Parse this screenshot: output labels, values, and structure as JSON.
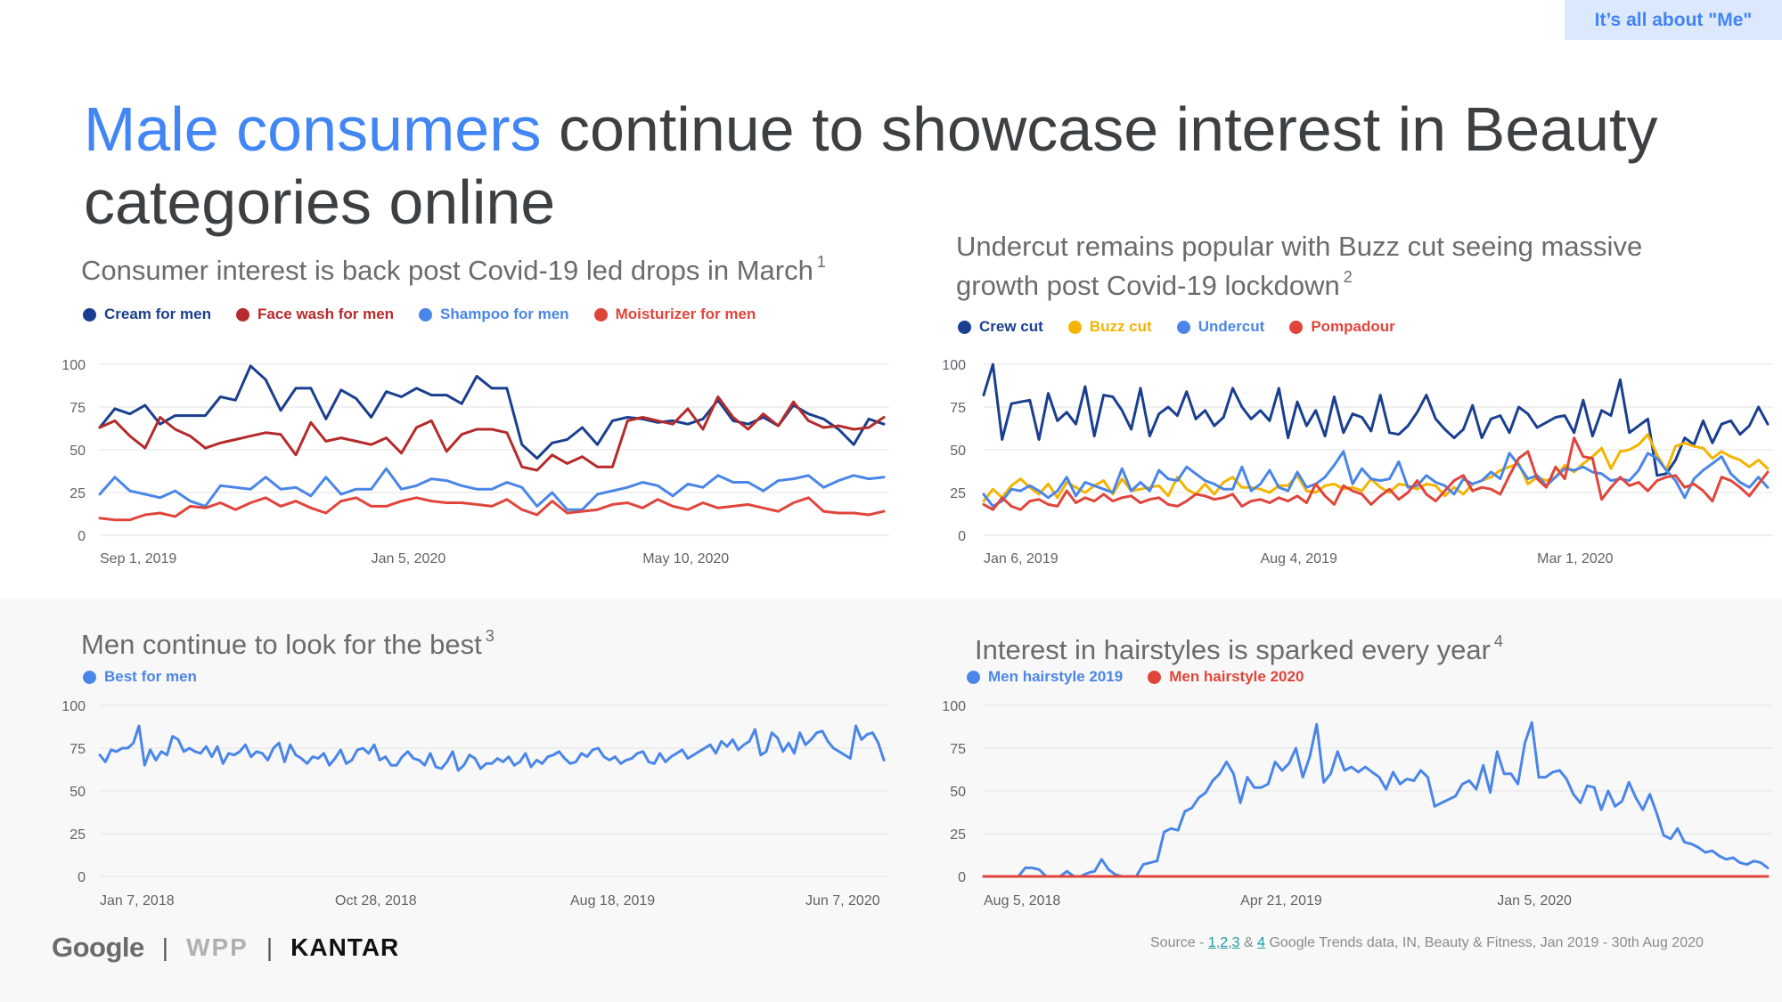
{
  "header": {
    "tag": "It’s all about \"Me\"",
    "headline_highlight": "Male consumers",
    "headline_rest": " continue to showcase interest in Beauty categories online"
  },
  "footer": {
    "logo_google": "Google",
    "sep1": "|",
    "logo_wpp": "WPP",
    "sep2": "|",
    "logo_kantar": "KANTAR",
    "source_prefix": "Source - ",
    "link1": "1",
    "comma1": ",",
    "link2": "2",
    "comma2": ",",
    "link3": "3",
    "amp": " & ",
    "link4": "4",
    "source_suffix": " Google Trends data, IN, Beauty & Fitness, Jan 2019 - 30th Aug 2020"
  },
  "chart_data": [
    {
      "type": "line",
      "title": "Consumer interest is back post Covid-19 led drops in March",
      "footnote": "1",
      "ylim": [
        0,
        100
      ],
      "y_ticks": [
        0,
        25,
        50,
        75,
        100
      ],
      "x_tick_labels": [
        "Sep 1, 2019",
        "Jan 5, 2020",
        "May 10, 2020"
      ],
      "x_tick_positions": [
        0,
        18,
        36
      ],
      "n_points": 53,
      "grid": true,
      "legend": "top-left",
      "series": [
        {
          "name": "Cream for men",
          "color": "#1a3f8f",
          "values": [
            63,
            74,
            71,
            76,
            65,
            70,
            70,
            70,
            81,
            79,
            99,
            91,
            73,
            86,
            86,
            68,
            85,
            80,
            69,
            84,
            81,
            86,
            82,
            82,
            77,
            93,
            86,
            86,
            53,
            45,
            54,
            56,
            63,
            53,
            67,
            69,
            68,
            66,
            67,
            65,
            68,
            79,
            67,
            65,
            69,
            64,
            76,
            71,
            68,
            62,
            53,
            68,
            65
          ]
        },
        {
          "name": "Face wash for men",
          "color": "#b52b2b",
          "values": [
            63,
            67,
            58,
            51,
            69,
            62,
            58,
            51,
            54,
            56,
            58,
            60,
            59,
            47,
            66,
            55,
            57,
            55,
            53,
            57,
            48,
            63,
            67,
            49,
            59,
            62,
            62,
            60,
            40,
            38,
            47,
            42,
            46,
            40,
            40,
            67,
            69,
            67,
            65,
            74,
            62,
            81,
            69,
            62,
            71,
            64,
            78,
            67,
            63,
            64,
            62,
            63,
            69
          ]
        },
        {
          "name": "Shampoo for men",
          "color": "#4a86e8",
          "values": [
            24,
            34,
            26,
            24,
            22,
            26,
            20,
            17,
            29,
            28,
            27,
            34,
            27,
            28,
            23,
            34,
            24,
            27,
            27,
            39,
            27,
            29,
            33,
            32,
            29,
            27,
            27,
            31,
            28,
            17,
            25,
            15,
            15,
            24,
            26,
            28,
            31,
            29,
            23,
            30,
            28,
            35,
            31,
            31,
            26,
            32,
            33,
            35,
            28,
            32,
            35,
            33,
            34
          ]
        },
        {
          "name": "Moisturizer for men",
          "color": "#e0453b",
          "values": [
            10,
            9,
            9,
            12,
            13,
            11,
            17,
            16,
            19,
            15,
            19,
            22,
            17,
            20,
            16,
            13,
            20,
            22,
            17,
            17,
            20,
            22,
            20,
            19,
            19,
            18,
            17,
            21,
            15,
            12,
            20,
            13,
            14,
            15,
            18,
            19,
            16,
            21,
            17,
            15,
            19,
            16,
            17,
            18,
            16,
            14,
            19,
            22,
            14,
            13,
            13,
            12,
            14
          ]
        }
      ]
    },
    {
      "type": "line",
      "title": "Undercut remains popular with Buzz cut seeing massive growth post Covid-19 lockdown",
      "footnote": "2",
      "ylim": [
        0,
        100
      ],
      "y_ticks": [
        0,
        25,
        50,
        75,
        100
      ],
      "x_tick_labels": [
        "Jan 6, 2019",
        "Aug 4, 2019",
        "Mar 1, 2020"
      ],
      "x_tick_positions": [
        0,
        30,
        60
      ],
      "n_points": 86,
      "grid": true,
      "legend": "top-left",
      "series": [
        {
          "name": "Crew cut",
          "color": "#1a3f8f",
          "values": [
            82,
            100,
            56,
            77,
            78,
            79,
            56,
            83,
            67,
            72,
            65,
            87,
            58,
            82,
            81,
            73,
            62,
            86,
            58,
            71,
            75,
            70,
            84,
            68,
            73,
            64,
            69,
            86,
            75,
            68,
            73,
            67,
            86,
            57,
            78,
            64,
            73,
            58,
            81,
            60,
            71,
            69,
            61,
            82,
            60,
            59,
            64,
            72,
            82,
            68,
            62,
            57,
            62,
            76,
            57,
            68,
            70,
            60,
            75,
            71,
            63,
            66,
            69,
            70,
            60,
            79,
            58,
            73,
            70,
            91,
            60,
            64,
            68,
            35,
            36,
            44,
            57,
            53,
            67,
            54,
            65,
            67,
            59,
            64,
            75,
            65
          ]
        },
        {
          "name": "Buzz cut",
          "color": "#f4b400",
          "values": [
            20,
            27,
            22,
            29,
            33,
            28,
            24,
            30,
            22,
            31,
            28,
            25,
            29,
            32,
            24,
            33,
            26,
            27,
            28,
            29,
            23,
            34,
            27,
            24,
            30,
            24,
            31,
            34,
            28,
            28,
            27,
            25,
            29,
            29,
            35,
            26,
            25,
            29,
            30,
            27,
            28,
            26,
            33,
            28,
            25,
            30,
            29,
            27,
            30,
            29,
            23,
            28,
            24,
            30,
            32,
            34,
            38,
            40,
            42,
            30,
            34,
            32,
            34,
            41,
            37,
            42,
            46,
            51,
            39,
            49,
            50,
            53,
            59,
            47,
            38,
            52,
            54,
            52,
            51,
            45,
            49,
            46,
            44,
            40,
            44,
            39
          ]
        },
        {
          "name": "Undercut",
          "color": "#4a86e8",
          "values": [
            24,
            17,
            20,
            27,
            26,
            29,
            26,
            22,
            26,
            34,
            23,
            31,
            29,
            27,
            25,
            39,
            26,
            31,
            26,
            38,
            33,
            32,
            40,
            36,
            32,
            30,
            27,
            27,
            40,
            26,
            30,
            38,
            28,
            26,
            37,
            28,
            30,
            34,
            41,
            49,
            30,
            39,
            33,
            32,
            33,
            43,
            28,
            29,
            35,
            31,
            29,
            24,
            33,
            30,
            32,
            37,
            33,
            48,
            41,
            33,
            35,
            29,
            34,
            39,
            38,
            40,
            37,
            36,
            32,
            33,
            32,
            38,
            48,
            45,
            38,
            32,
            22,
            33,
            38,
            42,
            46,
            36,
            31,
            28,
            34,
            28
          ]
        },
        {
          "name": "Pompadour",
          "color": "#e0453b",
          "values": [
            18,
            15,
            22,
            17,
            15,
            20,
            21,
            18,
            17,
            26,
            19,
            22,
            20,
            24,
            20,
            22,
            23,
            19,
            21,
            22,
            18,
            17,
            20,
            24,
            23,
            21,
            22,
            24,
            17,
            20,
            21,
            19,
            22,
            20,
            23,
            19,
            30,
            23,
            18,
            29,
            26,
            24,
            18,
            23,
            27,
            21,
            25,
            32,
            24,
            20,
            26,
            32,
            35,
            26,
            28,
            27,
            24,
            35,
            45,
            49,
            33,
            28,
            40,
            33,
            57,
            46,
            45,
            21,
            28,
            34,
            29,
            31,
            26,
            32,
            34,
            35,
            28,
            30,
            26,
            20,
            34,
            32,
            28,
            23,
            30,
            37
          ]
        }
      ]
    },
    {
      "type": "line",
      "title": "Men continue to look for the best",
      "footnote": "3",
      "ylim": [
        0,
        100
      ],
      "y_ticks": [
        0,
        25,
        50,
        75,
        100
      ],
      "x_tick_labels": [
        "Jan 7, 2018",
        "Oct 28, 2018",
        "Aug 18, 2019",
        "Jun 7, 2020"
      ],
      "x_tick_positions": [
        0,
        42,
        84,
        126
      ],
      "n_points": 141,
      "grid": true,
      "legend": "top-left",
      "series": [
        {
          "name": "Best for men",
          "color": "#4a86e8",
          "values": [
            71,
            67,
            74,
            73,
            75,
            75,
            78,
            88,
            65,
            74,
            68,
            73,
            71,
            82,
            80,
            73,
            75,
            73,
            72,
            76,
            70,
            76,
            66,
            72,
            71,
            73,
            77,
            70,
            73,
            72,
            68,
            75,
            78,
            67,
            77,
            71,
            69,
            66,
            70,
            69,
            72,
            65,
            69,
            74,
            66,
            68,
            74,
            75,
            72,
            77,
            68,
            70,
            65,
            65,
            70,
            73,
            69,
            68,
            65,
            72,
            64,
            63,
            67,
            73,
            62,
            65,
            71,
            69,
            63,
            66,
            66,
            69,
            67,
            70,
            65,
            67,
            72,
            64,
            68,
            66,
            70,
            71,
            73,
            69,
            66,
            67,
            72,
            70,
            74,
            75,
            70,
            68,
            70,
            66,
            68,
            69,
            72,
            73,
            67,
            66,
            72,
            67,
            70,
            72,
            74,
            69,
            71,
            73,
            75,
            77,
            72,
            79,
            76,
            80,
            74,
            77,
            79,
            86,
            71,
            73,
            84,
            81,
            73,
            78,
            72,
            84,
            77,
            80,
            84,
            85,
            79,
            75,
            73,
            71,
            69,
            88,
            80,
            83,
            84,
            78,
            68
          ]
        }
      ]
    },
    {
      "type": "line",
      "title": "Interest in hairstyles is sparked every year",
      "footnote": "4",
      "ylim": [
        0,
        100
      ],
      "y_ticks": [
        0,
        25,
        50,
        75,
        100
      ],
      "x_tick_labels": [
        "Aug 5, 2018",
        "Apr 21, 2019",
        "Jan 5, 2020"
      ],
      "x_tick_positions": [
        0,
        37,
        74
      ],
      "n_points": 114,
      "grid": true,
      "legend": "top-left",
      "series": [
        {
          "name": "Men hairstyle 2019",
          "color": "#4a86e8",
          "values": [
            0,
            0,
            0,
            0,
            0,
            0,
            5,
            5,
            4,
            0,
            0,
            0,
            3,
            0,
            0,
            2,
            3,
            10,
            4,
            1,
            0,
            0,
            0,
            7,
            8,
            9,
            26,
            28,
            27,
            38,
            40,
            46,
            49,
            56,
            60,
            67,
            60,
            43,
            58,
            52,
            52,
            54,
            67,
            62,
            66,
            75,
            58,
            70,
            89,
            55,
            60,
            73,
            62,
            64,
            61,
            64,
            61,
            58,
            51,
            61,
            54,
            57,
            56,
            62,
            58,
            41,
            43,
            45,
            47,
            54,
            56,
            51,
            65,
            49,
            73,
            60,
            60,
            54,
            78,
            90,
            58,
            58,
            61,
            62,
            57,
            48,
            43,
            53,
            52,
            39,
            50,
            41,
            44,
            55,
            46,
            39,
            48,
            37,
            24,
            22,
            28,
            20,
            19,
            17,
            14,
            15,
            12,
            10,
            11,
            8,
            7,
            9,
            8,
            5
          ]
        },
        {
          "name": "Men hairstyle 2020",
          "color": "#e0453b",
          "values": [
            0,
            0,
            0,
            0,
            0,
            0,
            0,
            0,
            0,
            0,
            0,
            0,
            0,
            0,
            0,
            0,
            0,
            0,
            0,
            0,
            0,
            0,
            0,
            0,
            0,
            0,
            0,
            0,
            0,
            0,
            0,
            0,
            0,
            0,
            0,
            0,
            0,
            0,
            0,
            0,
            0,
            0,
            0,
            0,
            0,
            0,
            0,
            0,
            0,
            0,
            0,
            0,
            0,
            0,
            0,
            0,
            0,
            0,
            0,
            0,
            0,
            0,
            0,
            0,
            0,
            0,
            0,
            0,
            0,
            0,
            0,
            0,
            0,
            0,
            0,
            0,
            0,
            0,
            0,
            0,
            0,
            0,
            0,
            0,
            0,
            0,
            0,
            0,
            0,
            0,
            0,
            0,
            0,
            0,
            0,
            0,
            0,
            0,
            0,
            0,
            0,
            0,
            0,
            0,
            0,
            0,
            0,
            0,
            0,
            0,
            0,
            0,
            0,
            0
          ]
        }
      ]
    }
  ]
}
